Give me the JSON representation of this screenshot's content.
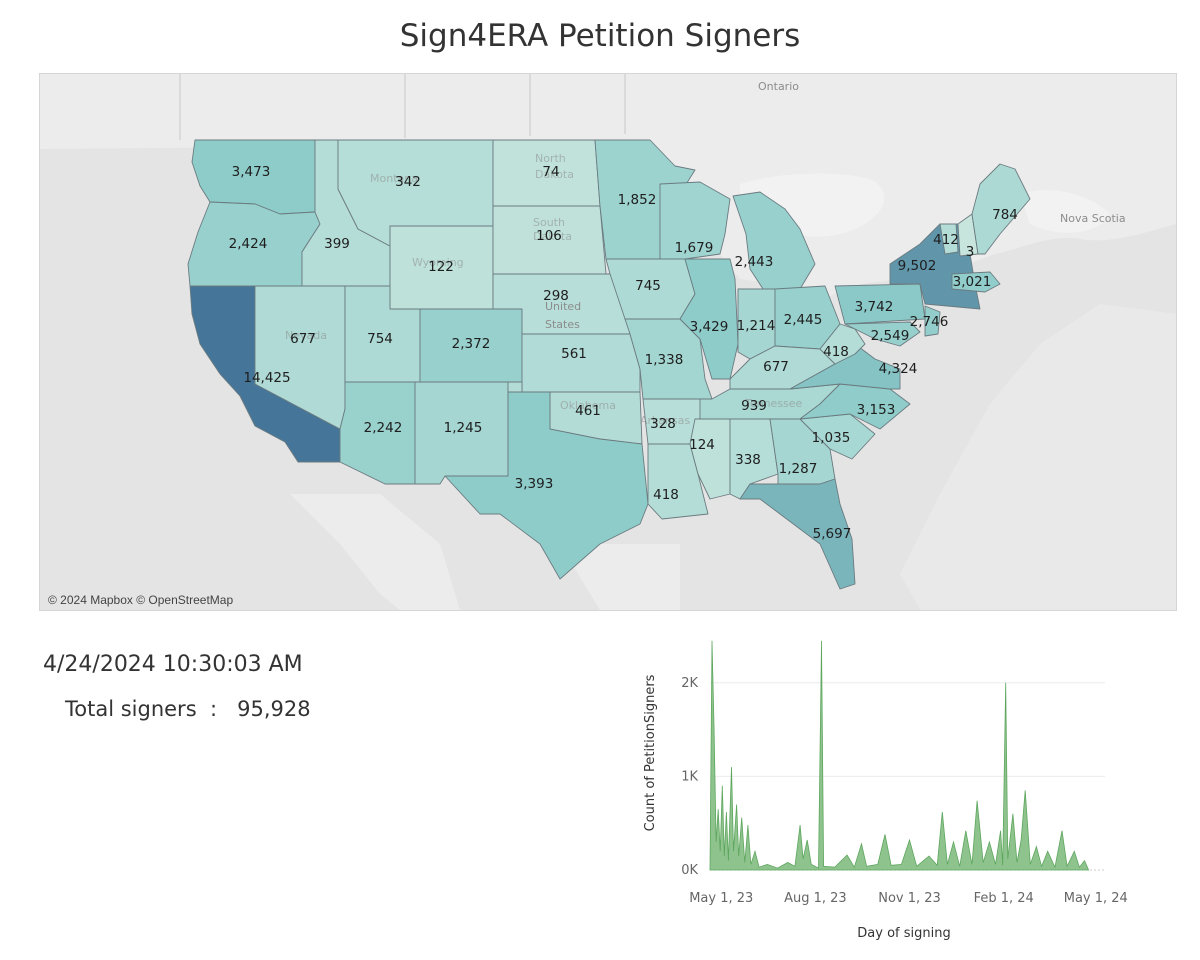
{
  "title": "Sign4ERA Petition Signers",
  "map": {
    "attribution": "© 2024 Mapbox © OpenStreetMap",
    "place_labels": [
      "Ontario",
      "Nova Scotia",
      "United",
      "States"
    ],
    "faint_labels": [
      "North",
      "Dakota",
      "South",
      "Dakota",
      "Montana",
      "Wyoming",
      "Nevada",
      "Oklahoma",
      "Arkansas",
      "Tennessee"
    ],
    "color_scale": {
      "low": "#c9e6de",
      "mid": "#8ccbc9",
      "high": "#457598"
    },
    "states": [
      {
        "id": "WA",
        "value": "3,473",
        "n": 3473
      },
      {
        "id": "OR",
        "value": "2,424",
        "n": 2424
      },
      {
        "id": "CA",
        "value": "14,425",
        "n": 14425
      },
      {
        "id": "ID",
        "value": "399",
        "n": 399
      },
      {
        "id": "NV",
        "value": "677",
        "n": 677
      },
      {
        "id": "MT",
        "value": "342",
        "n": 342
      },
      {
        "id": "WY",
        "value": "122",
        "n": 122
      },
      {
        "id": "UT",
        "value": "754",
        "n": 754
      },
      {
        "id": "CO",
        "value": "2,372",
        "n": 2372
      },
      {
        "id": "AZ",
        "value": "2,242",
        "n": 2242
      },
      {
        "id": "NM",
        "value": "1,245",
        "n": 1245
      },
      {
        "id": "ND",
        "value": "74",
        "n": 74
      },
      {
        "id": "SD",
        "value": "106",
        "n": 106
      },
      {
        "id": "NE",
        "value": "298",
        "n": 298
      },
      {
        "id": "KS",
        "value": "561",
        "n": 561
      },
      {
        "id": "OK",
        "value": "461",
        "n": 461
      },
      {
        "id": "TX",
        "value": "3,393",
        "n": 3393
      },
      {
        "id": "MN",
        "value": "1,852",
        "n": 1852
      },
      {
        "id": "IA",
        "value": "745",
        "n": 745
      },
      {
        "id": "MO",
        "value": "1,338",
        "n": 1338
      },
      {
        "id": "AR",
        "value": "328",
        "n": 328
      },
      {
        "id": "LA",
        "value": "418",
        "n": 418
      },
      {
        "id": "WI",
        "value": "1,679",
        "n": 1679
      },
      {
        "id": "IL",
        "value": "3,429",
        "n": 3429
      },
      {
        "id": "MI",
        "value": "2,443",
        "n": 2443
      },
      {
        "id": "IN",
        "value": "1,214",
        "n": 1214
      },
      {
        "id": "OH",
        "value": "2,445",
        "n": 2445
      },
      {
        "id": "KY",
        "value": "677",
        "n": 677
      },
      {
        "id": "TN",
        "value": "939",
        "n": 939
      },
      {
        "id": "MS",
        "value": "124",
        "n": 124
      },
      {
        "id": "AL",
        "value": "338",
        "n": 338
      },
      {
        "id": "GA",
        "value": "1,287",
        "n": 1287
      },
      {
        "id": "FL",
        "value": "5,697",
        "n": 5697
      },
      {
        "id": "SC",
        "value": "1,035",
        "n": 1035
      },
      {
        "id": "NC",
        "value": "3,153",
        "n": 3153
      },
      {
        "id": "VA",
        "value": "4,324",
        "n": 4324
      },
      {
        "id": "WV",
        "value": "418",
        "n": 418
      },
      {
        "id": "PA",
        "value": "3,742",
        "n": 3742
      },
      {
        "id": "NY",
        "value": "9,502",
        "n": 9502
      },
      {
        "id": "MD",
        "value": "2,549",
        "n": 2549
      },
      {
        "id": "NJ",
        "value": "2,746",
        "n": 2746
      },
      {
        "id": "VT",
        "value": "412",
        "n": 412
      },
      {
        "id": "NH",
        "value": "3",
        "n": 3
      },
      {
        "id": "MA",
        "value": "3,021",
        "n": 3021
      },
      {
        "id": "ME",
        "value": "784",
        "n": 784
      }
    ]
  },
  "summary": {
    "timestamp": "4/24/2024 10:30:03 AM",
    "total_label": "Total signers",
    "separator": ":",
    "total_value": "95,928"
  },
  "chart_data": {
    "type": "area",
    "xlabel": "Day of signing",
    "ylabel": "Count of PetitionSigners",
    "x_tick_labels": [
      "May 1, 23",
      "Aug 1, 23",
      "Nov 1, 23",
      "Feb 1, 24",
      "May 1, 24"
    ],
    "x_ticks": [
      "2023-05-01",
      "2023-08-01",
      "2023-11-01",
      "2024-02-01",
      "2024-05-01"
    ],
    "x_range": [
      "2023-04-20",
      "2024-05-10"
    ],
    "y_tick_labels": [
      "0K",
      "1K",
      "2K"
    ],
    "y_ticks": [
      0,
      1000,
      2000
    ],
    "ylim": [
      0,
      2500
    ],
    "grid": true,
    "color": "#7ab87a",
    "points": [
      [
        "2023-04-20",
        0
      ],
      [
        "2023-04-22",
        2450
      ],
      [
        "2023-04-24",
        1500
      ],
      [
        "2023-04-26",
        300
      ],
      [
        "2023-04-28",
        650
      ],
      [
        "2023-04-30",
        200
      ],
      [
        "2023-05-02",
        900
      ],
      [
        "2023-05-04",
        150
      ],
      [
        "2023-05-06",
        620
      ],
      [
        "2023-05-08",
        100
      ],
      [
        "2023-05-11",
        1100
      ],
      [
        "2023-05-13",
        200
      ],
      [
        "2023-05-16",
        700
      ],
      [
        "2023-05-18",
        150
      ],
      [
        "2023-05-21",
        560
      ],
      [
        "2023-05-24",
        80
      ],
      [
        "2023-05-27",
        480
      ],
      [
        "2023-05-30",
        60
      ],
      [
        "2023-06-03",
        200
      ],
      [
        "2023-06-07",
        30
      ],
      [
        "2023-06-15",
        60
      ],
      [
        "2023-06-25",
        20
      ],
      [
        "2023-07-05",
        80
      ],
      [
        "2023-07-12",
        40
      ],
      [
        "2023-07-17",
        480
      ],
      [
        "2023-07-20",
        120
      ],
      [
        "2023-07-24",
        320
      ],
      [
        "2023-07-28",
        60
      ],
      [
        "2023-08-04",
        20
      ],
      [
        "2023-08-07",
        2450
      ],
      [
        "2023-08-09",
        40
      ],
      [
        "2023-08-20",
        30
      ],
      [
        "2023-09-01",
        160
      ],
      [
        "2023-09-08",
        30
      ],
      [
        "2023-09-15",
        280
      ],
      [
        "2023-09-20",
        40
      ],
      [
        "2023-10-01",
        60
      ],
      [
        "2023-10-08",
        380
      ],
      [
        "2023-10-14",
        50
      ],
      [
        "2023-10-24",
        60
      ],
      [
        "2023-11-01",
        320
      ],
      [
        "2023-11-08",
        40
      ],
      [
        "2023-11-20",
        150
      ],
      [
        "2023-11-28",
        50
      ],
      [
        "2023-12-03",
        620
      ],
      [
        "2023-12-08",
        60
      ],
      [
        "2023-12-14",
        300
      ],
      [
        "2023-12-20",
        40
      ],
      [
        "2023-12-26",
        420
      ],
      [
        "2024-01-01",
        60
      ],
      [
        "2024-01-06",
        740
      ],
      [
        "2024-01-12",
        80
      ],
      [
        "2024-01-18",
        300
      ],
      [
        "2024-01-24",
        60
      ],
      [
        "2024-01-29",
        420
      ],
      [
        "2024-01-31",
        50
      ],
      [
        "2024-02-03",
        2000
      ],
      [
        "2024-02-05",
        120
      ],
      [
        "2024-02-10",
        600
      ],
      [
        "2024-02-14",
        80
      ],
      [
        "2024-02-18",
        320
      ],
      [
        "2024-02-22",
        850
      ],
      [
        "2024-02-27",
        60
      ],
      [
        "2024-03-04",
        250
      ],
      [
        "2024-03-09",
        40
      ],
      [
        "2024-03-15",
        200
      ],
      [
        "2024-03-22",
        30
      ],
      [
        "2024-03-29",
        420
      ],
      [
        "2024-04-03",
        40
      ],
      [
        "2024-04-10",
        200
      ],
      [
        "2024-04-15",
        30
      ],
      [
        "2024-04-20",
        100
      ],
      [
        "2024-04-24",
        0
      ]
    ]
  }
}
